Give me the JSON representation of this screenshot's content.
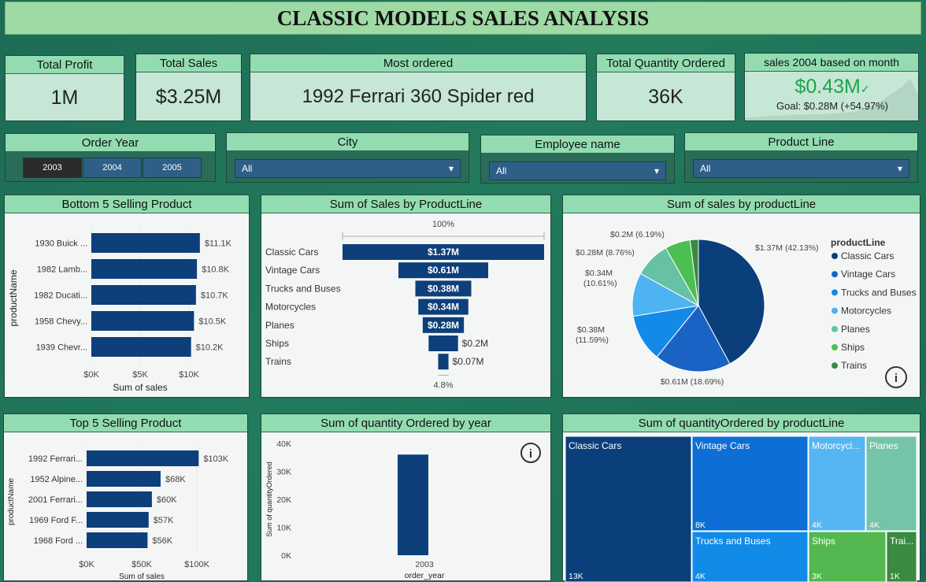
{
  "title": "CLASSIC MODELS SALES ANALYSIS",
  "kpis": {
    "profit": {
      "label": "Total Profit",
      "value": "1M"
    },
    "sales": {
      "label": "Total Sales",
      "value": "$3.25M"
    },
    "most_ordered": {
      "label": "Most ordered",
      "value": "1992 Ferrari 360 Spider red"
    },
    "quantity": {
      "label": "Total Quantity Ordered",
      "value": "36K"
    },
    "month": {
      "label": "sales 2004 based on month",
      "value": "$0.43M",
      "goal": "Goal: $0.28M (+54.97%)"
    }
  },
  "slicers": {
    "year": {
      "label": "Order Year",
      "options": [
        "2003",
        "2004",
        "2005"
      ],
      "selected": "2003"
    },
    "city": {
      "label": "City",
      "value": "All"
    },
    "employee": {
      "label": "Employee name",
      "value": "All"
    },
    "product_line": {
      "label": "Product Line",
      "value": "All"
    }
  },
  "colors": {
    "navy": "#0d3f7a",
    "accent_green": "#1ea54a"
  },
  "bottom5": {
    "title": "Bottom 5 Selling Product",
    "ylabel": "productName",
    "xlabel": "Sum of sales",
    "ticks": [
      "$0K",
      "$5K",
      "$10K"
    ]
  },
  "funnel": {
    "title": "Sum of Sales by ProductLine",
    "top_label": "100%",
    "bottom_label": "4.8%"
  },
  "pie": {
    "title": "Sum of sales by productLine",
    "legend_title": "productLine"
  },
  "top5": {
    "title": "Top 5 Selling Product",
    "ylabel": "productName",
    "xlabel": "Sum of sales",
    "ticks": [
      "$0K",
      "$50K",
      "$100K"
    ]
  },
  "qty_year": {
    "title": "Sum of quantity Ordered by year",
    "ylabel": "Sum of quantityOrdered",
    "xlabel": "order_year",
    "ticks": [
      "0K",
      "10K",
      "20K",
      "30K",
      "40K"
    ]
  },
  "treemap": {
    "title": "Sum of quantityOrdered by productLine"
  },
  "chart_data": [
    {
      "type": "bar",
      "title": "Bottom 5 Selling Product",
      "categories": [
        "1930 Buick ...",
        "1982 Lamb...",
        "1982 Ducati...",
        "1958 Chevy...",
        "1939 Chevr..."
      ],
      "values": [
        11.1,
        10.8,
        10.7,
        10.5,
        10.2
      ],
      "labels": [
        "$11.1K",
        "$10.8K",
        "$10.7K",
        "$10.5K",
        "$10.2K"
      ],
      "xlabel": "Sum of sales",
      "ylabel": "productName",
      "xlim": [
        0,
        12
      ]
    },
    {
      "type": "bar",
      "title": "Sum of Sales by ProductLine",
      "categories": [
        "Classic Cars",
        "Vintage Cars",
        "Trucks and Buses",
        "Motorcycles",
        "Planes",
        "Ships",
        "Trains"
      ],
      "values": [
        1.37,
        0.61,
        0.38,
        0.34,
        0.28,
        0.2,
        0.07
      ],
      "labels": [
        "$1.37M",
        "$0.61M",
        "$0.38M",
        "$0.34M",
        "$0.28M",
        "$0.2M",
        "$0.07M"
      ]
    },
    {
      "type": "pie",
      "title": "Sum of sales by productLine",
      "categories": [
        "Classic Cars",
        "Vintage Cars",
        "Trucks and Buses",
        "Motorcycles",
        "Planes",
        "Ships",
        "Trains"
      ],
      "values": [
        42.13,
        18.69,
        11.59,
        10.61,
        8.76,
        6.19,
        2.03
      ],
      "labels": [
        "$1.37M (42.13%)",
        "$0.61M (18.69%)",
        "$0.38M (11.59%)",
        "$0.34M (10.61%)",
        "$0.28M (8.76%)",
        "$0.2M (6.19%)",
        ""
      ],
      "colors": [
        "#0b3f7c",
        "#1a62c4",
        "#148ae8",
        "#4db3f2",
        "#66c2a4",
        "#4cbf52",
        "#3a8a3f"
      ]
    },
    {
      "type": "bar",
      "title": "Top 5 Selling Product",
      "categories": [
        "1992 Ferrari...",
        "1952 Alpine...",
        "2001 Ferrari...",
        "1969 Ford F...",
        "1968 Ford ..."
      ],
      "values": [
        103,
        68,
        60,
        57,
        56
      ],
      "labels": [
        "$103K",
        "$68K",
        "$60K",
        "$57K",
        "$56K"
      ],
      "xlabel": "Sum of sales",
      "ylabel": "productName",
      "xlim": [
        0,
        110
      ]
    },
    {
      "type": "bar",
      "title": "Sum of quantity Ordered by year",
      "categories": [
        "2003"
      ],
      "values": [
        36
      ],
      "xlabel": "order_year",
      "ylabel": "Sum of quantityOrdered",
      "ylim": [
        0,
        40
      ]
    },
    {
      "type": "heatmap",
      "title": "Sum of quantityOrdered by productLine",
      "categories": [
        "Classic Cars",
        "Vintage Cars",
        "Trucks and Buses",
        "Motorcycles",
        "Planes",
        "Ships",
        "Trains"
      ],
      "display_names": [
        "Classic Cars",
        "Vintage Cars",
        "Trucks and Buses",
        "Motorcycl...",
        "Planes",
        "Ships",
        "Trai..."
      ],
      "values": [
        13,
        8,
        4,
        4,
        4,
        3,
        1
      ],
      "labels": [
        "13K",
        "8K",
        "4K",
        "4K",
        "4K",
        "3K",
        "1K"
      ],
      "colors": [
        "#0b3f7c",
        "#0d6fd6",
        "#128be8",
        "#55b6f3",
        "#74c5a8",
        "#52b84f",
        "#3a8a3f"
      ]
    }
  ]
}
